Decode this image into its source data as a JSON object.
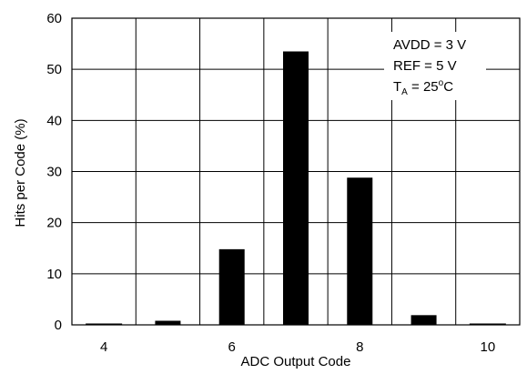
{
  "chart_data": {
    "type": "bar",
    "xlabel": "ADC Output Code",
    "ylabel": "Hits per Code (%)",
    "x": [
      4,
      5,
      6,
      7,
      8,
      9,
      10
    ],
    "values": [
      0,
      0.8,
      14.8,
      53.5,
      28.8,
      1.9,
      0
    ],
    "xlim": [
      3.5,
      10.5
    ],
    "ylim": [
      0,
      60
    ],
    "x_ticks": [
      4,
      6,
      8,
      10
    ],
    "y_ticks": [
      0,
      10,
      20,
      30,
      40,
      50,
      60
    ],
    "grid": true,
    "bar_color": "#000000",
    "annotation": {
      "line1": "AVDD = 3 V",
      "line2": "REF =  5 V",
      "line3_T": "T",
      "line3_sub": "A",
      "line3_eq": " = 25",
      "line3_sup": "o",
      "line3_unit": "C",
      "placement": "top-right"
    }
  }
}
